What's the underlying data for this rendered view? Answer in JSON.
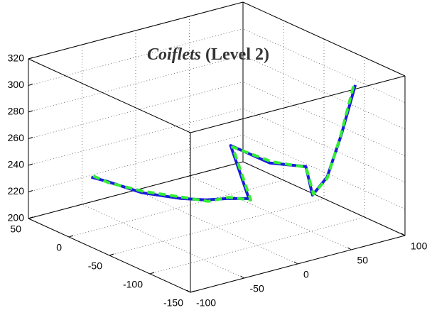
{
  "chart_data": {
    "type": "line3d",
    "title": {
      "italic": "Coiflets",
      "plain": "(Level 2)"
    },
    "xlim": [
      -100,
      100
    ],
    "xticks": [
      -100,
      -50,
      0,
      50,
      100
    ],
    "ylim": [
      -150,
      50
    ],
    "yticks": [
      -150,
      -100,
      -50,
      0,
      50
    ],
    "zlim": [
      200,
      320
    ],
    "zticks": [
      200,
      220,
      240,
      260,
      280,
      300,
      320
    ],
    "grid": true,
    "series": [
      {
        "color": "#1a1adc",
        "dashed": false,
        "x": [
          -61,
          -54,
          -34,
          -10,
          3,
          17,
          30,
          19,
          54,
          62,
          72,
          78,
          98,
          102
        ],
        "y": [
          24,
          15,
          -3,
          -19,
          -33,
          -40,
          -50,
          -42,
          -44,
          -78,
          -73,
          -83,
          -74,
          -86
        ],
        "z": [
          230,
          228,
          220,
          215,
          215,
          215,
          215,
          255,
          235,
          240,
          215,
          230,
          255,
          295
        ]
      },
      {
        "color": "#33ee33",
        "dashed": true,
        "x": [
          -60,
          -53,
          -33,
          -9,
          4,
          18,
          31,
          20,
          55,
          63,
          72,
          79,
          97,
          101
        ],
        "y": [
          23,
          14,
          -4,
          -20,
          -34,
          -41,
          -51,
          -43,
          -45,
          -77,
          -74,
          -82,
          -75,
          -85
        ],
        "z": [
          231,
          227,
          221,
          216,
          214,
          216,
          214,
          254,
          236,
          239,
          216,
          229,
          256,
          294
        ]
      }
    ]
  }
}
